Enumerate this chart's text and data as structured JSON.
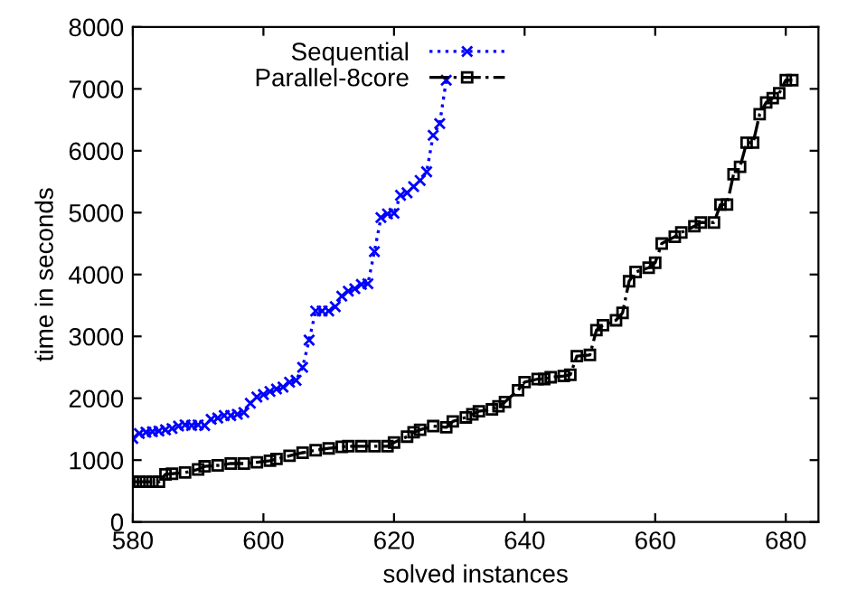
{
  "chart_data": {
    "type": "line",
    "xlabel": "solved instances",
    "ylabel": "time in seconds",
    "xlim": [
      580,
      685
    ],
    "ylim": [
      0,
      8000
    ],
    "xticks": [
      580,
      600,
      620,
      640,
      660,
      680
    ],
    "yticks": [
      0,
      1000,
      2000,
      3000,
      4000,
      5000,
      6000,
      7000,
      8000
    ],
    "grid": false,
    "legend": "top",
    "series": [
      {
        "name": "Sequential",
        "color": "#0000ff",
        "marker": "cross",
        "line_style": "dotted",
        "x": [
          580,
          581,
          582,
          583,
          584,
          585,
          586,
          587,
          588,
          589,
          590,
          591,
          592,
          593,
          594,
          595,
          596,
          597,
          598,
          599,
          600,
          601,
          602,
          603,
          604,
          605,
          606,
          607,
          608,
          609,
          610,
          611,
          612,
          613,
          614,
          615,
          616,
          617,
          618,
          619,
          620,
          621,
          622,
          623,
          624,
          625,
          626,
          627,
          628
        ],
        "values": [
          1350,
          1430,
          1450,
          1460,
          1470,
          1490,
          1510,
          1550,
          1570,
          1560,
          1570,
          1560,
          1660,
          1680,
          1720,
          1720,
          1740,
          1770,
          1920,
          2020,
          2060,
          2110,
          2150,
          2180,
          2260,
          2290,
          2500,
          2940,
          3410,
          3410,
          3410,
          3480,
          3650,
          3730,
          3770,
          3840,
          3850,
          4370,
          4920,
          4980,
          4990,
          5280,
          5320,
          5420,
          5520,
          5660,
          6250,
          6440,
          7140
        ]
      },
      {
        "name": "Parallel-8core",
        "color": "#000000",
        "marker": "square",
        "line_style": "dashed",
        "x": [
          580,
          581,
          582,
          583,
          584,
          585,
          586,
          588,
          590,
          591,
          593,
          595,
          597,
          599,
          601,
          602,
          604,
          606,
          608,
          610,
          612,
          613,
          615,
          617,
          619,
          620,
          622,
          623,
          624,
          626,
          628,
          629,
          631,
          632,
          633,
          635,
          636,
          637,
          639,
          640,
          642,
          643,
          644,
          646,
          647,
          648,
          650,
          651,
          652,
          654,
          655,
          656,
          657,
          659,
          660,
          661,
          663,
          664,
          666,
          667,
          669,
          670,
          671,
          672,
          673,
          674,
          675,
          676,
          677,
          678,
          679,
          680,
          681
        ],
        "values": [
          650,
          650,
          650,
          650,
          650,
          770,
          780,
          800,
          850,
          900,
          915,
          945,
          945,
          965,
          990,
          1020,
          1070,
          1120,
          1160,
          1190,
          1215,
          1225,
          1225,
          1225,
          1225,
          1285,
          1380,
          1450,
          1490,
          1550,
          1530,
          1625,
          1690,
          1740,
          1790,
          1820,
          1870,
          1940,
          2130,
          2260,
          2310,
          2310,
          2340,
          2360,
          2380,
          2680,
          2700,
          3100,
          3180,
          3260,
          3380,
          3890,
          4040,
          4110,
          4190,
          4500,
          4610,
          4680,
          4780,
          4840,
          4840,
          5130,
          5130,
          5620,
          5740,
          6130,
          6130,
          6590,
          6780,
          6850,
          6930,
          7140,
          7140
        ]
      }
    ]
  }
}
